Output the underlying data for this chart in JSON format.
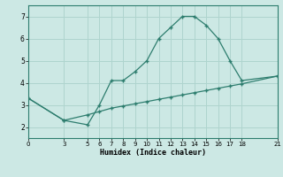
{
  "xlabel": "Humidex (Indice chaleur)",
  "bg_color": "#cce8e4",
  "line_color": "#2d7d6e",
  "grid_color": "#afd4ce",
  "line1_x": [
    0,
    3,
    5,
    6,
    7,
    8,
    9,
    10,
    11,
    12,
    13,
    14,
    15,
    16,
    17,
    18,
    21
  ],
  "line1_y": [
    3.3,
    2.3,
    2.1,
    3.0,
    4.1,
    4.1,
    4.5,
    5.0,
    6.0,
    6.5,
    7.0,
    7.0,
    6.6,
    6.0,
    5.0,
    4.1,
    4.3
  ],
  "line2_x": [
    0,
    3,
    5,
    6,
    7,
    8,
    9,
    10,
    11,
    12,
    13,
    14,
    15,
    16,
    17,
    18,
    21
  ],
  "line2_y": [
    3.3,
    2.3,
    2.55,
    2.7,
    2.85,
    2.95,
    3.05,
    3.15,
    3.25,
    3.35,
    3.45,
    3.55,
    3.65,
    3.75,
    3.85,
    3.95,
    4.3
  ],
  "xlim": [
    0,
    21
  ],
  "ylim": [
    1.5,
    7.5
  ],
  "xticks": [
    0,
    3,
    5,
    6,
    7,
    8,
    9,
    10,
    11,
    12,
    13,
    14,
    15,
    16,
    17,
    18,
    21
  ],
  "yticks": [
    2,
    3,
    4,
    5,
    6,
    7
  ]
}
